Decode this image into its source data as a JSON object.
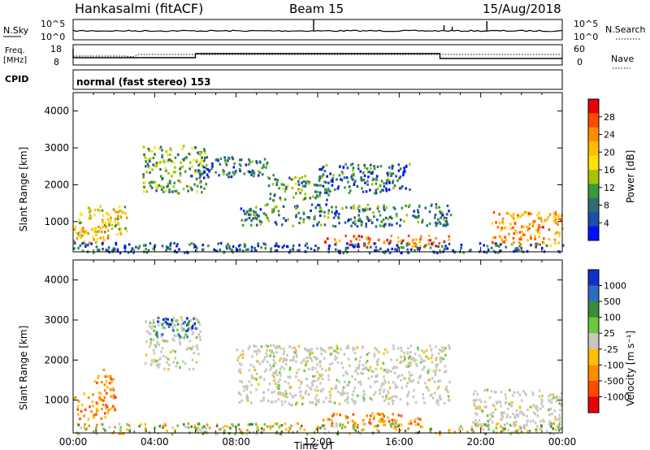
{
  "header": {
    "station": "Hankasalmi (fitACF)",
    "beam": "Beam 15",
    "date": "15/Aug/2018"
  },
  "strips": {
    "nsky_label": "N.Sky",
    "nsky_ticks": [
      "10^5",
      "10^0"
    ],
    "nsearch_label": "N.Search",
    "nsearch_ticks": [
      "10^5",
      "10^0"
    ],
    "freq_label_1": "Freq.",
    "freq_label_2": "[MHz]",
    "freq_ticks": [
      "18",
      "8"
    ],
    "nave_label": "Nave",
    "nave_ticks": [
      "60",
      "0"
    ],
    "cpid_label": "CPID",
    "cpid_text": "normal (fast stereo) 153"
  },
  "chart_data": [
    {
      "type": "heatmap",
      "panel": "power",
      "xlabel": "",
      "ylabel": "Slant Range [km]",
      "x_range": [
        "00:00",
        "24:00"
      ],
      "ylim": [
        180,
        4500
      ],
      "y_ticks": [
        1000,
        2000,
        3000,
        4000
      ],
      "colorbar": {
        "label": "Power [dB]",
        "ticks": [
          "28",
          "24",
          "20",
          "16",
          "12",
          "8",
          "4"
        ],
        "colors": [
          "#e8000b",
          "#ff4a00",
          "#ff8c00",
          "#ffbf00",
          "#ffe200",
          "#a6c400",
          "#3a9a3a",
          "#2e6e6e",
          "#1f4ea8",
          "#0010ff"
        ]
      },
      "regions": [
        {
          "t0": 0.2,
          "t1": 2.6,
          "r0": 600,
          "r1": 1450,
          "level": 0.55
        },
        {
          "t0": 0.0,
          "t1": 1.7,
          "r0": 450,
          "r1": 900,
          "level": 0.7
        },
        {
          "t0": 3.4,
          "t1": 6.5,
          "r0": 1800,
          "r1": 3100,
          "level": 0.35
        },
        {
          "t0": 6.0,
          "t1": 9.5,
          "r0": 2200,
          "r1": 2800,
          "level": 0.2
        },
        {
          "t0": 9.5,
          "t1": 12.5,
          "r0": 1600,
          "r1": 2300,
          "level": 0.3
        },
        {
          "t0": 8.0,
          "t1": 18.5,
          "r0": 900,
          "r1": 1500,
          "level": 0.25
        },
        {
          "t0": 12.2,
          "t1": 18.4,
          "r0": 350,
          "r1": 650,
          "level": 0.85
        },
        {
          "t0": 12.0,
          "t1": 16.5,
          "r0": 1800,
          "r1": 2600,
          "level": 0.2
        },
        {
          "t0": 20.5,
          "t1": 24.0,
          "r0": 350,
          "r1": 1300,
          "level": 0.75
        },
        {
          "t0": 0.0,
          "t1": 24.0,
          "r0": 180,
          "r1": 450,
          "level": 0.15
        }
      ]
    },
    {
      "type": "heatmap",
      "panel": "velocity",
      "xlabel": "Time UT",
      "ylabel": "Slant Range [km]",
      "x_range": [
        "00:00",
        "24:00"
      ],
      "x_ticks": [
        "00:00",
        "04:00",
        "08:00",
        "12:00",
        "16:00",
        "20:00",
        "00:00"
      ],
      "ylim": [
        180,
        4500
      ],
      "y_ticks": [
        1000,
        2000,
        3000,
        4000
      ],
      "colorbar": {
        "label": "Velocity [m s⁻¹]",
        "ticks": [
          "1000",
          "500",
          "100",
          "25",
          "-25",
          "-100",
          "-500",
          "-1000"
        ],
        "colors": [
          "#1030c8",
          "#2e6cc0",
          "#3a8a3a",
          "#6cc83a",
          "#c8c8c0",
          "#ffbf00",
          "#ff8c00",
          "#ff4a00",
          "#e8000b"
        ]
      },
      "regions": [
        {
          "t0": 0.0,
          "t1": 2.2,
          "r0": 550,
          "r1": 1200,
          "class": "neg"
        },
        {
          "t0": 1.0,
          "t1": 2.0,
          "r0": 1200,
          "r1": 1800,
          "class": "neg"
        },
        {
          "t0": 3.5,
          "t1": 6.2,
          "r0": 1800,
          "r1": 3100,
          "class": "zero"
        },
        {
          "t0": 4.0,
          "t1": 6.0,
          "r0": 2600,
          "r1": 3100,
          "class": "pos"
        },
        {
          "t0": 8.0,
          "t1": 18.5,
          "r0": 900,
          "r1": 2400,
          "class": "zero"
        },
        {
          "t0": 12.2,
          "t1": 17.0,
          "r0": 350,
          "r1": 700,
          "class": "neg"
        },
        {
          "t0": 19.5,
          "t1": 24.0,
          "r0": 350,
          "r1": 1300,
          "class": "zero"
        },
        {
          "t0": 0.0,
          "t1": 24.0,
          "r0": 180,
          "r1": 450,
          "class": "mixed"
        }
      ]
    }
  ]
}
